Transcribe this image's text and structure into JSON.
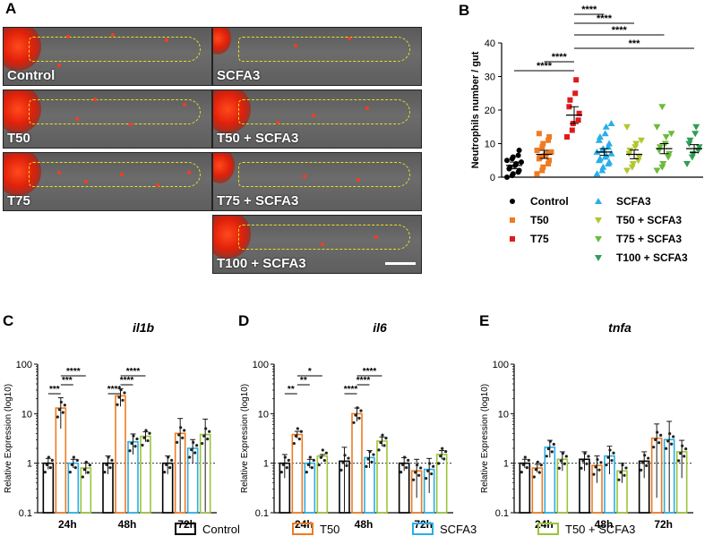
{
  "panels": {
    "a": "A",
    "b": "B",
    "c": "C",
    "d": "D",
    "e": "E"
  },
  "images": [
    {
      "label": "Control"
    },
    {
      "label": "SCFA3"
    },
    {
      "label": "T50"
    },
    {
      "label": "T50 + SCFA3"
    },
    {
      "label": "T75"
    },
    {
      "label": "T75 + SCFA3"
    },
    {
      "label": "T100 + SCFA3"
    }
  ],
  "chart_data": [
    {
      "id": "B",
      "type": "scatter",
      "ylabel": "Neutrophils number / gut",
      "ylim": [
        0,
        40
      ],
      "yticks": [
        0,
        10,
        20,
        30,
        40
      ],
      "groups": [
        {
          "name": "Control",
          "color": "#000000",
          "marker": "circle",
          "mean": 3.5,
          "sem": 1.0,
          "values": [
            0,
            0.5,
            1,
            1.5,
            2,
            2.5,
            3,
            3.5,
            4,
            4.5,
            5,
            5.5,
            6,
            6.5,
            8
          ]
        },
        {
          "name": "T50",
          "color": "#f07b20",
          "marker": "square",
          "mean": 6.8,
          "sem": 1.2,
          "values": [
            1,
            2,
            3,
            4,
            5,
            5.5,
            6,
            6.5,
            7,
            7.5,
            8,
            9,
            10,
            11,
            12,
            13
          ]
        },
        {
          "name": "T75",
          "color": "#e01a1a",
          "marker": "square",
          "mean": 18.5,
          "sem": 2.5,
          "values": [
            12,
            14,
            16,
            17,
            19,
            21,
            23,
            25,
            29
          ]
        },
        {
          "name": "SCFA3",
          "color": "#29aee8",
          "marker": "triangle-up",
          "mean": 7.5,
          "sem": 1.0,
          "values": [
            1,
            2,
            3,
            4,
            4.5,
            5,
            5.5,
            6,
            6.5,
            7,
            7.5,
            8,
            8.5,
            9,
            10,
            11,
            12,
            13,
            15,
            16
          ]
        },
        {
          "name": "T50 + SCFA3",
          "color": "#b4c530",
          "marker": "triangle-down",
          "mean": 6.8,
          "sem": 1.3,
          "values": [
            2,
            3,
            4,
            5,
            6,
            7,
            8,
            9,
            10,
            11,
            15
          ]
        },
        {
          "name": "T75 + SCFA3",
          "color": "#6dbb3a",
          "marker": "triangle-down",
          "mean": 8.5,
          "sem": 1.5,
          "values": [
            2,
            3,
            4,
            6,
            7,
            8,
            9,
            10,
            12,
            13,
            15,
            21
          ]
        },
        {
          "name": "T100 + SCFA3",
          "color": "#2f9e55",
          "marker": "triangle-down",
          "mean": 8.5,
          "sem": 1.2,
          "values": [
            4,
            6,
            7,
            8,
            9,
            10,
            11,
            13,
            15
          ]
        }
      ],
      "significance": [
        {
          "from": 0,
          "to": 2,
          "label": "****"
        },
        {
          "from": 1,
          "to": 2,
          "label": "****"
        },
        {
          "from": 2,
          "to": 6,
          "label": "***"
        },
        {
          "from": 2,
          "to": 5,
          "label": "****"
        },
        {
          "from": 2,
          "to": 4,
          "label": "****"
        },
        {
          "from": 2,
          "to": 3,
          "label": "****"
        }
      ],
      "legend": [
        {
          "name": "Control",
          "marker": "circle",
          "color": "#000000"
        },
        {
          "name": "SCFA3",
          "marker": "triangle-up",
          "color": "#29aee8"
        },
        {
          "name": "T50",
          "marker": "square",
          "color": "#f07b20"
        },
        {
          "name": "T50 + SCFA3",
          "marker": "triangle-down",
          "color": "#b4c530"
        },
        {
          "name": "T75",
          "marker": "square",
          "color": "#e01a1a"
        },
        {
          "name": "T75 + SCFA3",
          "marker": "triangle-down",
          "color": "#6dbb3a"
        },
        {
          "name": "",
          "marker": "",
          "color": ""
        },
        {
          "name": "T100 + SCFA3",
          "marker": "triangle-down",
          "color": "#2f9e55"
        }
      ]
    },
    {
      "id": "C",
      "type": "bar",
      "title": "il1b",
      "ylabel": "Relative Expression (log10)",
      "yscale": "log",
      "ylim": [
        0.1,
        100
      ],
      "yticks": [
        "0.1",
        "1",
        "10",
        "100"
      ],
      "reference_line": 1,
      "categories": [
        "24h",
        "48h",
        "72h"
      ],
      "series": [
        {
          "name": "Control",
          "values": [
            1.0,
            1.0,
            1.0
          ],
          "err": [
            0.25,
            0.4,
            0.4
          ]
        },
        {
          "name": "T50",
          "values": [
            13,
            23,
            4.0
          ],
          "err": [
            8,
            9,
            4
          ]
        },
        {
          "name": "SCFA3",
          "values": [
            1.0,
            2.7,
            2.0
          ],
          "err": [
            0.2,
            1.2,
            1.0
          ]
        },
        {
          "name": "T50 + SCFA3",
          "values": [
            0.8,
            3.5,
            3.8
          ],
          "err": [
            0.2,
            0.8,
            4
          ]
        }
      ],
      "significance": [
        {
          "cat": 0,
          "from": 0,
          "to": 1,
          "label": "***"
        },
        {
          "cat": 0,
          "from": 1,
          "to": 2,
          "label": "***"
        },
        {
          "cat": 0,
          "from": 1,
          "to": 3,
          "label": "****"
        },
        {
          "cat": 1,
          "from": 0,
          "to": 1,
          "label": "****"
        },
        {
          "cat": 1,
          "from": 1,
          "to": 2,
          "label": "****"
        },
        {
          "cat": 1,
          "from": 1,
          "to": 3,
          "label": "****"
        }
      ]
    },
    {
      "id": "D",
      "type": "bar",
      "title": "il6",
      "ylabel": "Relative Expression (log10)",
      "yscale": "log",
      "ylim": [
        0.1,
        100
      ],
      "yticks": [
        "0.1",
        "1",
        "10",
        "100"
      ],
      "reference_line": 1,
      "categories": [
        "24h",
        "48h",
        "72h"
      ],
      "series": [
        {
          "name": "Control",
          "values": [
            1.0,
            1.1,
            1.0
          ],
          "err": [
            0.5,
            1.0,
            0.3
          ]
        },
        {
          "name": "T50",
          "values": [
            3.8,
            10,
            0.7
          ],
          "err": [
            0.6,
            3,
            0.5
          ]
        },
        {
          "name": "SCFA3",
          "values": [
            1.0,
            1.3,
            0.75
          ],
          "err": [
            0.2,
            0.5,
            0.5
          ]
        },
        {
          "name": "T50 + SCFA3",
          "values": [
            1.4,
            2.8,
            1.5
          ],
          "err": [
            0.1,
            0.6,
            0.3
          ]
        }
      ],
      "significance": [
        {
          "cat": 0,
          "from": 0,
          "to": 1,
          "label": "**"
        },
        {
          "cat": 0,
          "from": 1,
          "to": 2,
          "label": "**"
        },
        {
          "cat": 0,
          "from": 1,
          "to": 3,
          "label": "*"
        },
        {
          "cat": 1,
          "from": 0,
          "to": 1,
          "label": "****"
        },
        {
          "cat": 1,
          "from": 1,
          "to": 2,
          "label": "****"
        },
        {
          "cat": 1,
          "from": 1,
          "to": 3,
          "label": "****"
        }
      ]
    },
    {
      "id": "E",
      "type": "bar",
      "title": "tnfa",
      "ylabel": "Relative Expression (log10)",
      "yscale": "log",
      "ylim": [
        0.1,
        100
      ],
      "yticks": [
        "0.1",
        "1",
        "10",
        "100"
      ],
      "reference_line": 1,
      "categories": [
        "24h",
        "48h",
        "72h"
      ],
      "series": [
        {
          "name": "Control",
          "values": [
            1.0,
            1.2,
            1.1
          ],
          "err": [
            0.2,
            0.5,
            0.6
          ]
        },
        {
          "name": "T50",
          "values": [
            0.8,
            0.9,
            3.2
          ],
          "err": [
            0.15,
            0.5,
            3
          ]
        },
        {
          "name": "SCFA3",
          "values": [
            2.1,
            1.4,
            3.0
          ],
          "err": [
            0.8,
            0.8,
            4
          ]
        },
        {
          "name": "T50 + SCFA3",
          "values": [
            1.2,
            0.7,
            1.7
          ],
          "err": [
            0.5,
            0.3,
            1.2
          ]
        }
      ],
      "significance": []
    }
  ],
  "bar_legend": [
    {
      "name": "Control",
      "color": "#000000"
    },
    {
      "name": "T50",
      "color": "#f07b20"
    },
    {
      "name": "SCFA3",
      "color": "#29aee8"
    },
    {
      "name": "T50 + SCFA3",
      "color": "#9cc43a"
    }
  ],
  "bar_colors": [
    "#000000",
    "#f07b20",
    "#29aee8",
    "#9cc43a"
  ]
}
